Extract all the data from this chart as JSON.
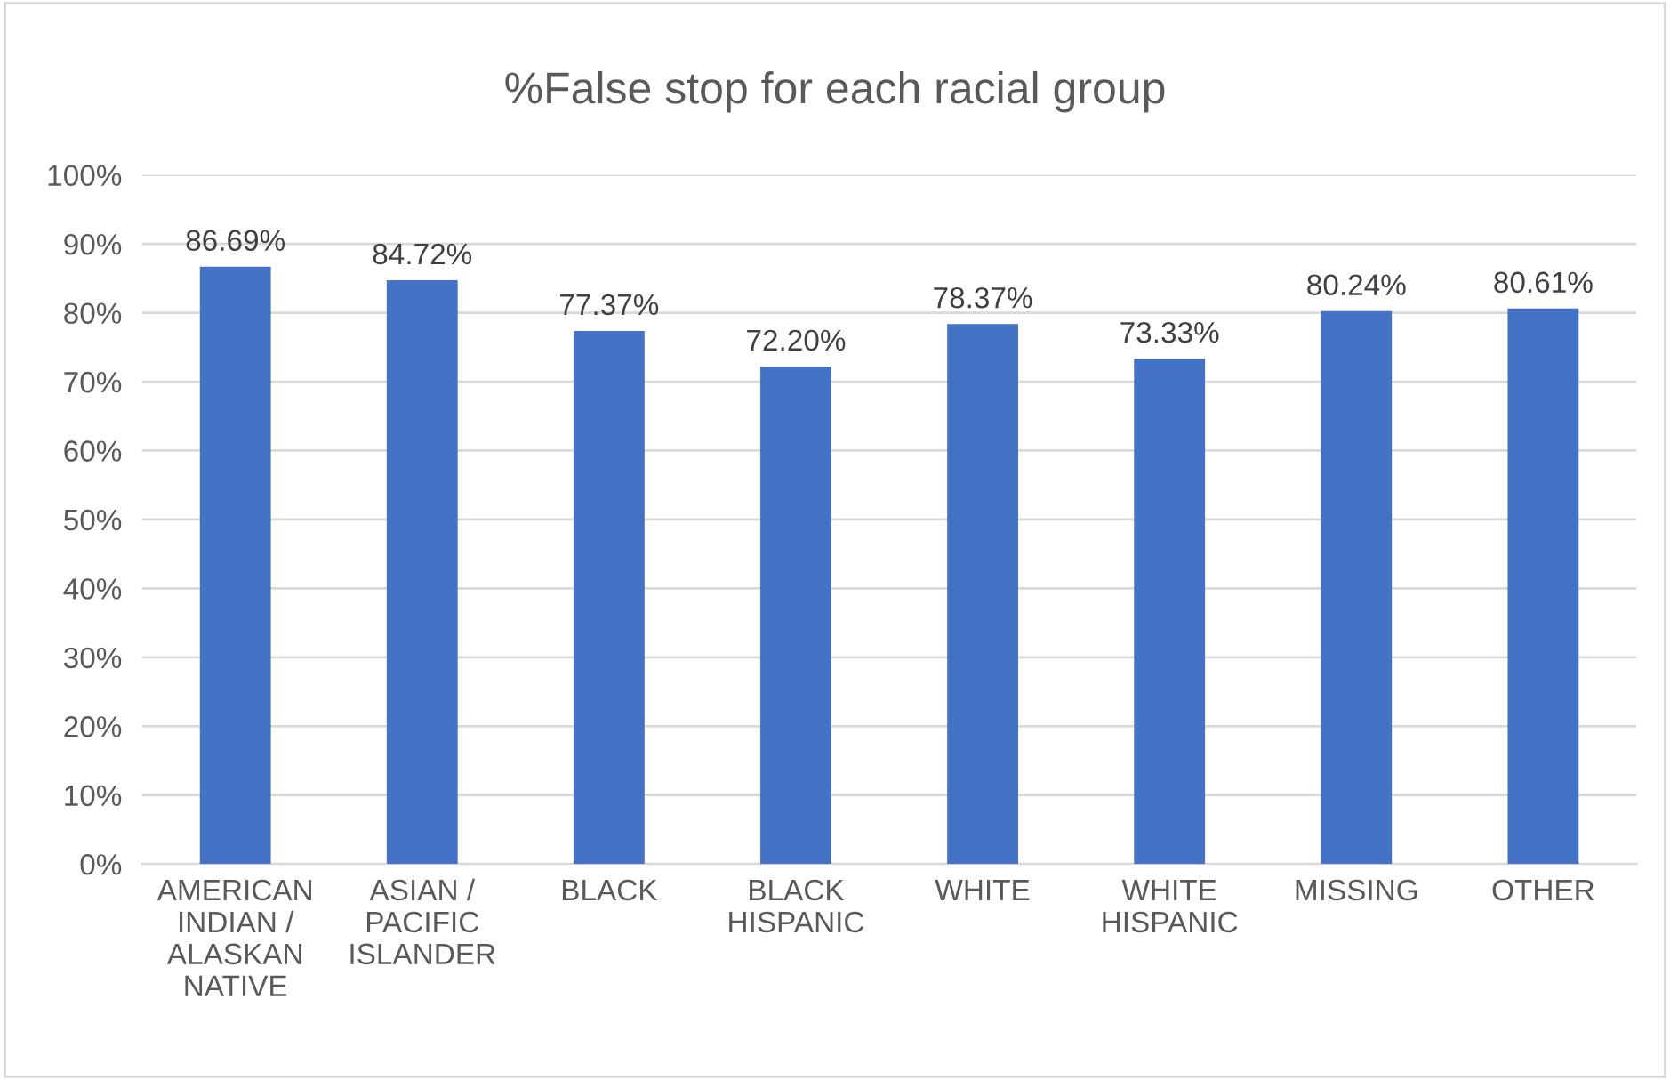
{
  "chart_data": {
    "type": "bar",
    "title": "%False stop for each racial group",
    "categories": [
      "AMERICAN\nINDIAN /\nALASKAN\nNATIVE",
      "ASIAN /\nPACIFIC\nISLANDER",
      "BLACK",
      "BLACK\nHISPANIC",
      "WHITE",
      "WHITE\nHISPANIC",
      "MISSING",
      "OTHER"
    ],
    "values": [
      86.69,
      84.72,
      77.37,
      72.2,
      78.37,
      73.33,
      80.24,
      80.61
    ],
    "value_labels": [
      "86.69%",
      "84.72%",
      "77.37%",
      "72.20%",
      "78.37%",
      "73.33%",
      "80.24%",
      "80.61%"
    ],
    "color": "#4472c4",
    "ylim": [
      0,
      100
    ],
    "yticks": [
      {
        "value": 0,
        "label": "0%"
      },
      {
        "value": 10,
        "label": "10%"
      },
      {
        "value": 20,
        "label": "20%"
      },
      {
        "value": 30,
        "label": "30%"
      },
      {
        "value": 40,
        "label": "40%"
      },
      {
        "value": 50,
        "label": "50%"
      },
      {
        "value": 60,
        "label": "60%"
      },
      {
        "value": 70,
        "label": "70%"
      },
      {
        "value": 80,
        "label": "80%"
      },
      {
        "value": 90,
        "label": "90%"
      },
      {
        "value": 100,
        "label": "100%"
      }
    ],
    "grid": "y"
  }
}
